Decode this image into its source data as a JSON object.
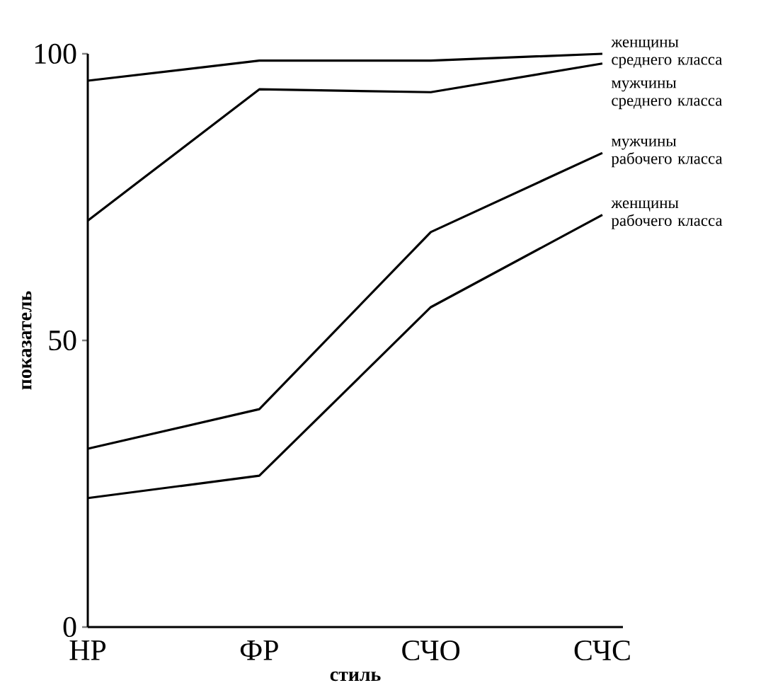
{
  "chart_data": {
    "type": "line",
    "xlabel": "стиль",
    "ylabel": "показатель",
    "categories": [
      "НР",
      "ФР",
      "СЧО",
      "СЧС"
    ],
    "series": [
      {
        "name": "женщины среднего класса",
        "color": "#000000",
        "values": [
          95.3,
          98.8,
          98.8,
          100
        ]
      },
      {
        "name": "мужчины среднего класса",
        "color": "#000000",
        "values": [
          70.9,
          93.8,
          93.3,
          98.3
        ]
      },
      {
        "name": "мужчины рабочего класса",
        "color": "#000000",
        "values": [
          31.1,
          38,
          68.9,
          82.7
        ]
      },
      {
        "name": "женщины рабочего класса",
        "color": "#000000",
        "values": [
          22.5,
          26.4,
          55.8,
          71.9
        ]
      }
    ],
    "ylim": [
      0,
      100
    ],
    "yticks": [
      0,
      50,
      100
    ],
    "grid": false,
    "marker": "none",
    "line_style": "solid"
  }
}
